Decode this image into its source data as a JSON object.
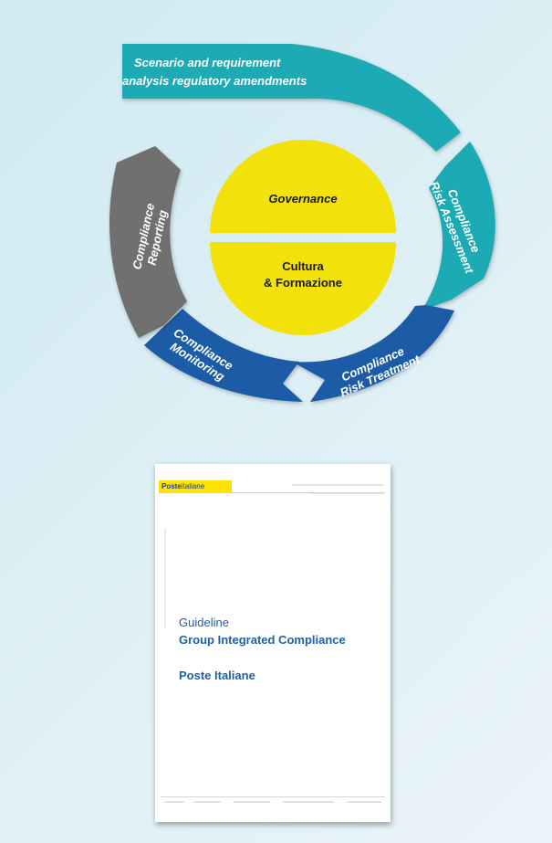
{
  "diagram": {
    "segments": [
      {
        "id": "scenario",
        "lines": [
          "Scenario and requirement",
          "analysis regulatory amendments"
        ],
        "color": "#1aaab5"
      },
      {
        "id": "risk-assessment",
        "lines": [
          "Compliance",
          "Risk Assessment"
        ],
        "color": "#1aaab5"
      },
      {
        "id": "risk-treatment",
        "lines": [
          "Compliance",
          "Risk Treatment"
        ],
        "color": "#1f5ca6"
      },
      {
        "id": "monitoring",
        "lines": [
          "Compliance",
          "Monitoring"
        ],
        "color": "#1f5ca6"
      },
      {
        "id": "reporting",
        "lines": [
          "Compliance",
          "Reporting"
        ],
        "color": "#6f6f6f"
      }
    ],
    "core": {
      "top_label": "Governance",
      "bottom_lines": [
        "Cultura",
        "& Formazione"
      ],
      "color": "#f2e20a"
    }
  },
  "document": {
    "logo_bold": "Poste",
    "logo_rest": "italiane",
    "title": "Guideline",
    "subtitle": "Group Integrated Compliance",
    "organization": "Poste Italiane"
  }
}
